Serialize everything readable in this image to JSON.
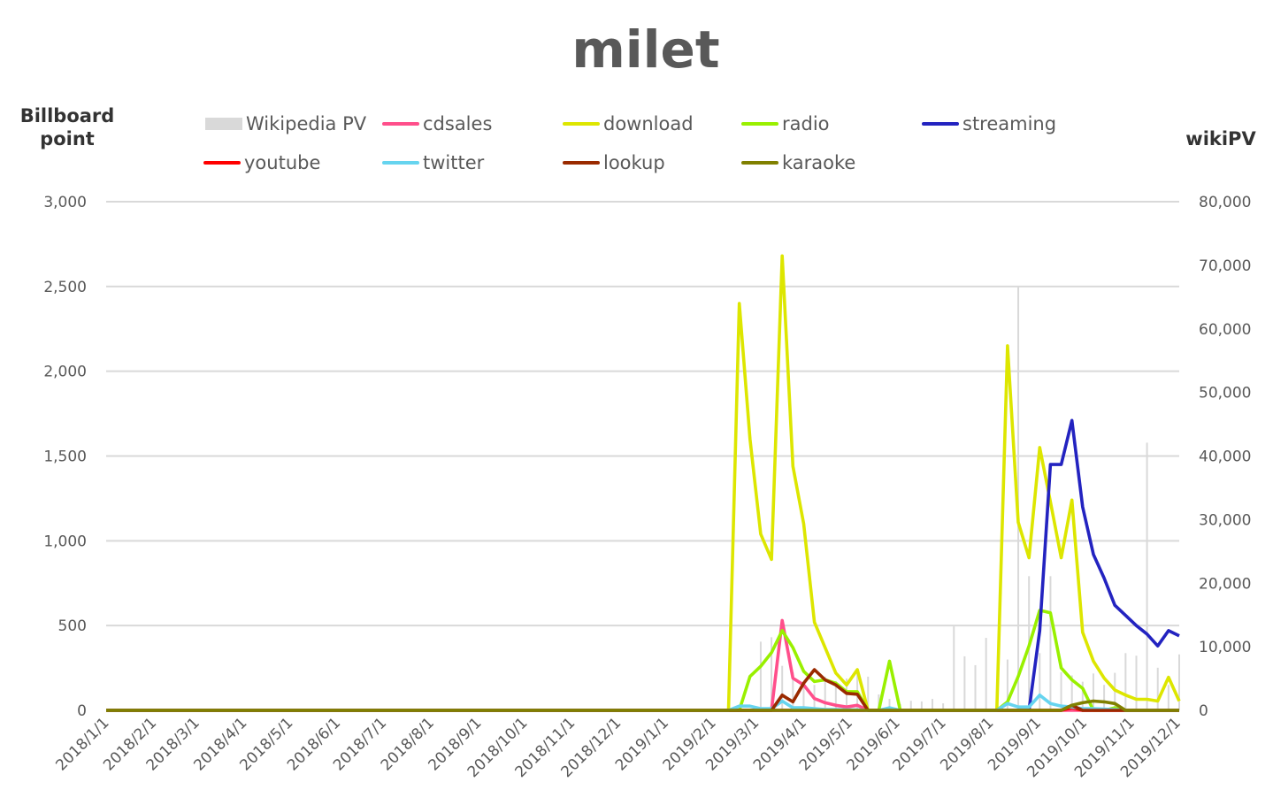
{
  "chart_data": {
    "type": "line",
    "title": "milet",
    "ylabel": "Billboard point",
    "y2label": "wikiPV",
    "ylim": [
      0,
      3000
    ],
    "y2lim": [
      0,
      80000
    ],
    "yticks": [
      "0",
      "500",
      "1,000",
      "1,500",
      "2,000",
      "2,500",
      "3,000"
    ],
    "y2ticks": [
      "0",
      "10,000",
      "20,000",
      "30,000",
      "40,000",
      "50,000",
      "60,000",
      "70,000",
      "80,000"
    ],
    "grid": true,
    "legend_position": "top",
    "x_start": "2018/1/1",
    "x_step_days": 7,
    "x_count": 101,
    "xticks": [
      "2018/1/1",
      "2018/2/1",
      "2018/3/1",
      "2018/4/1",
      "2018/5/1",
      "2018/6/1",
      "2018/7/1",
      "2018/8/1",
      "2018/9/1",
      "2018/10/1",
      "2018/11/1",
      "2018/12/1",
      "2019/1/1",
      "2019/2/1",
      "2019/3/1",
      "2019/4/1",
      "2019/5/1",
      "2019/6/1",
      "2019/7/1",
      "2019/8/1",
      "2019/9/1",
      "2019/10/1",
      "2019/11/1",
      "2019/12/1"
    ],
    "bars": {
      "name": "Wikipedia PV",
      "color": "#d9d9d9",
      "axis": "right",
      "points": [
        [
          61,
          10800
        ],
        [
          62,
          11500
        ],
        [
          63,
          7000
        ],
        [
          64,
          6000
        ],
        [
          65,
          4500
        ],
        [
          66,
          4000
        ],
        [
          67,
          5300
        ],
        [
          68,
          4600
        ],
        [
          69,
          5000
        ],
        [
          70,
          6000
        ],
        [
          71,
          5300
        ],
        [
          72,
          2500
        ],
        [
          73,
          1800
        ],
        [
          74,
          1000
        ],
        [
          75,
          1500
        ],
        [
          76,
          1400
        ],
        [
          77,
          1800
        ],
        [
          78,
          1100
        ],
        [
          79,
          13200
        ],
        [
          80,
          8500
        ],
        [
          81,
          7100
        ],
        [
          82,
          11400
        ],
        [
          83,
          3000
        ],
        [
          84,
          8000
        ],
        [
          85,
          66700
        ],
        [
          86,
          21100
        ],
        [
          87,
          9000
        ],
        [
          88,
          21100
        ],
        [
          89,
          6000
        ],
        [
          90,
          5500
        ],
        [
          91,
          4500
        ],
        [
          92,
          5800
        ],
        [
          93,
          4000
        ],
        [
          94,
          5900
        ],
        [
          95,
          9000
        ],
        [
          96,
          8600
        ],
        [
          97,
          42100
        ],
        [
          98,
          6700
        ],
        [
          99,
          4000
        ],
        [
          100,
          8800
        ]
      ]
    },
    "series": [
      {
        "name": "cdsales",
        "color": "#ff4f8b",
        "points": [
          [
            62,
            0
          ],
          [
            63,
            530
          ],
          [
            64,
            190
          ],
          [
            65,
            150
          ],
          [
            66,
            70
          ],
          [
            67,
            45
          ],
          [
            68,
            30
          ],
          [
            69,
            20
          ],
          [
            70,
            30
          ],
          [
            71,
            0
          ]
        ]
      },
      {
        "name": "download",
        "color": "#dde600",
        "points": [
          [
            58,
            0
          ],
          [
            59,
            2400
          ],
          [
            60,
            1600
          ],
          [
            61,
            1040
          ],
          [
            62,
            890
          ],
          [
            63,
            2680
          ],
          [
            64,
            1440
          ],
          [
            65,
            1100
          ],
          [
            66,
            520
          ],
          [
            67,
            370
          ],
          [
            68,
            220
          ],
          [
            69,
            150
          ],
          [
            70,
            240
          ],
          [
            71,
            0
          ],
          [
            83,
            0
          ],
          [
            84,
            2150
          ],
          [
            85,
            1110
          ],
          [
            86,
            900
          ],
          [
            87,
            1550
          ],
          [
            88,
            1230
          ],
          [
            89,
            900
          ],
          [
            90,
            1240
          ],
          [
            91,
            460
          ],
          [
            92,
            290
          ],
          [
            93,
            190
          ],
          [
            94,
            120
          ],
          [
            95,
            90
          ],
          [
            96,
            65
          ],
          [
            97,
            65
          ],
          [
            98,
            55
          ],
          [
            99,
            195
          ],
          [
            100,
            55
          ]
        ]
      },
      {
        "name": "radio",
        "color": "#99f000",
        "points": [
          [
            59,
            0
          ],
          [
            60,
            200
          ],
          [
            61,
            260
          ],
          [
            62,
            340
          ],
          [
            63,
            470
          ],
          [
            64,
            370
          ],
          [
            65,
            230
          ],
          [
            66,
            170
          ],
          [
            67,
            180
          ],
          [
            68,
            160
          ],
          [
            69,
            110
          ],
          [
            70,
            110
          ],
          [
            71,
            0
          ],
          [
            72,
            0
          ],
          [
            73,
            290
          ],
          [
            74,
            0
          ],
          [
            83,
            0
          ],
          [
            84,
            50
          ],
          [
            85,
            200
          ],
          [
            86,
            380
          ],
          [
            87,
            590
          ],
          [
            88,
            575
          ],
          [
            89,
            250
          ],
          [
            90,
            180
          ],
          [
            91,
            130
          ],
          [
            92,
            0
          ],
          [
            93,
            0
          ],
          [
            94,
            15
          ],
          [
            95,
            0
          ]
        ]
      },
      {
        "name": "streaming",
        "color": "#2323c0",
        "points": [
          [
            86,
            0
          ],
          [
            87,
            470
          ],
          [
            88,
            1450
          ],
          [
            89,
            1450
          ],
          [
            90,
            1710
          ],
          [
            91,
            1200
          ],
          [
            92,
            920
          ],
          [
            93,
            780
          ],
          [
            94,
            620
          ],
          [
            95,
            560
          ],
          [
            96,
            500
          ],
          [
            97,
            450
          ],
          [
            98,
            380
          ],
          [
            99,
            470
          ],
          [
            100,
            440
          ]
        ]
      },
      {
        "name": "youtube",
        "color": "#ff0000",
        "points": [
          [
            89,
            0
          ],
          [
            90,
            15
          ],
          [
            91,
            0
          ]
        ]
      },
      {
        "name": "twitter",
        "color": "#66d4ef",
        "points": [
          [
            58,
            0
          ],
          [
            59,
            25
          ],
          [
            60,
            25
          ],
          [
            61,
            10
          ],
          [
            62,
            10
          ],
          [
            63,
            55
          ],
          [
            64,
            15
          ],
          [
            65,
            15
          ],
          [
            66,
            10
          ],
          [
            67,
            5
          ],
          [
            68,
            5
          ],
          [
            69,
            3
          ],
          [
            70,
            3
          ],
          [
            71,
            0
          ],
          [
            72,
            0
          ],
          [
            73,
            15
          ],
          [
            74,
            0
          ],
          [
            83,
            0
          ],
          [
            84,
            40
          ],
          [
            85,
            20
          ],
          [
            86,
            20
          ],
          [
            87,
            90
          ],
          [
            88,
            40
          ],
          [
            89,
            25
          ],
          [
            90,
            20
          ],
          [
            91,
            10
          ],
          [
            92,
            10
          ],
          [
            93,
            8
          ],
          [
            94,
            5
          ],
          [
            95,
            0
          ]
        ]
      },
      {
        "name": "lookup",
        "color": "#9a2a00",
        "points": [
          [
            62,
            0
          ],
          [
            63,
            90
          ],
          [
            64,
            50
          ],
          [
            65,
            160
          ],
          [
            66,
            240
          ],
          [
            67,
            180
          ],
          [
            68,
            150
          ],
          [
            69,
            100
          ],
          [
            70,
            95
          ],
          [
            71,
            0
          ],
          [
            89,
            0
          ],
          [
            90,
            30
          ],
          [
            91,
            0
          ]
        ]
      },
      {
        "name": "karaoke",
        "color": "#808000",
        "points": [
          [
            89,
            0
          ],
          [
            90,
            30
          ],
          [
            91,
            45
          ],
          [
            92,
            55
          ],
          [
            93,
            50
          ],
          [
            94,
            40
          ],
          [
            95,
            0
          ]
        ]
      }
    ]
  }
}
